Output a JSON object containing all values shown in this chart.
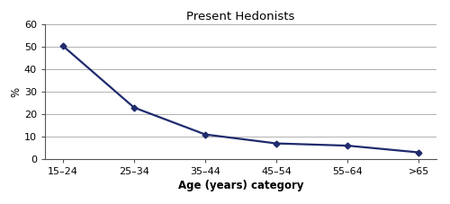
{
  "title": "Present Hedonists",
  "xlabel": "Age (years) category",
  "ylabel": "%",
  "categories": [
    "15–24",
    "25–34",
    "35–44",
    "45–54",
    "55–64",
    ">65"
  ],
  "values": [
    50.5,
    23.0,
    11.0,
    7.0,
    6.0,
    3.0
  ],
  "ylim": [
    0,
    60
  ],
  "yticks": [
    0,
    10,
    20,
    30,
    40,
    50,
    60
  ],
  "line_color": "#1f2b6e",
  "marker": "D",
  "marker_size": 3.5,
  "line_width": 1.6,
  "background_color": "#ffffff",
  "title_fontsize": 9.5,
  "title_fontweight": "normal",
  "axis_label_fontsize": 8.5,
  "tick_fontsize": 8,
  "grid_color": "#b0b0b0",
  "grid_linewidth": 0.7,
  "spine_color": "#555555"
}
